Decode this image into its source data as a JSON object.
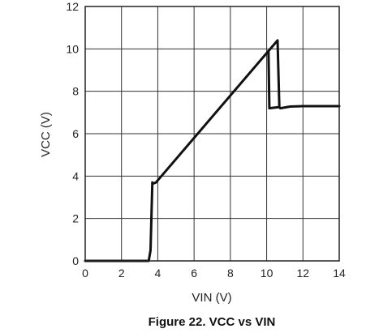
{
  "chart_data": {
    "type": "line",
    "caption": "Figure 22. VCC vs VIN",
    "xlabel": "VIN (V)",
    "ylabel": "VCC (V)",
    "xlim": [
      0,
      14
    ],
    "ylim": [
      0,
      12
    ],
    "xticks": [
      0,
      2,
      4,
      6,
      8,
      10,
      12,
      14
    ],
    "yticks": [
      0,
      2,
      4,
      6,
      8,
      10,
      12
    ],
    "grid": true,
    "series": [
      {
        "values_x": [
          0,
          3.5,
          3.6,
          3.7,
          3.75,
          3.9,
          10.6,
          10.7,
          10.75,
          11.3,
          12,
          14
        ],
        "values_y": [
          0,
          0,
          0.5,
          3.7,
          3.65,
          3.7,
          10.4,
          7.25,
          7.2,
          7.28,
          7.3,
          7.3
        ]
      },
      {
        "values_x": [
          10.1,
          10.15,
          10.65
        ],
        "values_y": [
          9.9,
          7.2,
          7.25
        ]
      }
    ]
  }
}
